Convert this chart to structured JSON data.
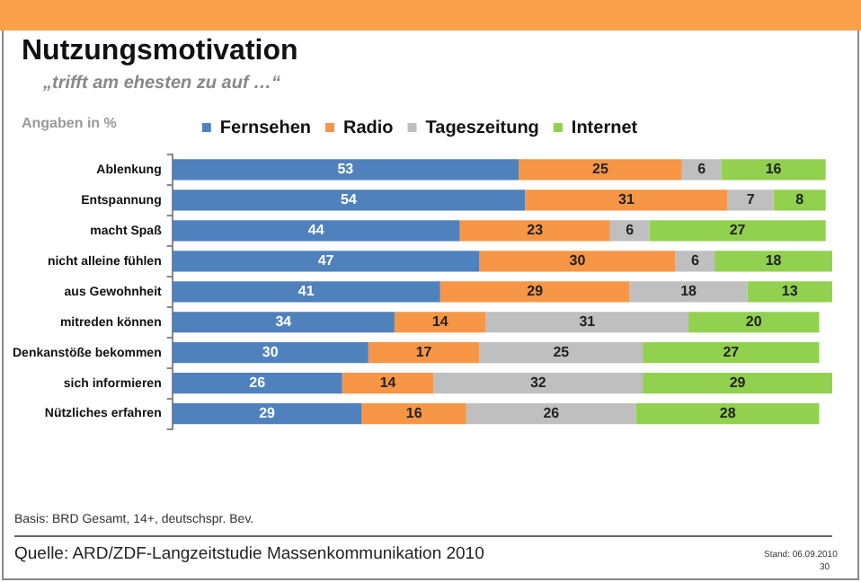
{
  "chart_data": {
    "type": "bar",
    "orientation": "horizontal",
    "stacked": true,
    "title": "Nutzungsmotivation",
    "subtitle": "„trifft am ehesten zu auf …“",
    "categories": [
      "Ablenkung",
      "Entspannung",
      "macht Spaß",
      "nicht alleine fühlen",
      "aus Gewohnheit",
      "mitreden können",
      "Denkanstöße bekommen",
      "sich informieren",
      "Nützliches erfahren"
    ],
    "series": [
      {
        "name": "Fernsehen",
        "color": "#4f81bd",
        "values": [
          53,
          54,
          44,
          47,
          41,
          34,
          30,
          26,
          29
        ]
      },
      {
        "name": "Radio",
        "color": "#f79646",
        "values": [
          25,
          31,
          23,
          30,
          29,
          14,
          17,
          14,
          16
        ]
      },
      {
        "name": "Tageszeitung",
        "color": "#bfbfbf",
        "values": [
          6,
          7,
          6,
          6,
          18,
          31,
          25,
          32,
          26
        ]
      },
      {
        "name": "Internet",
        "color": "#92d050",
        "values": [
          16,
          8,
          27,
          18,
          13,
          20,
          27,
          29,
          28
        ]
      }
    ],
    "xlim": [
      0,
      101
    ],
    "tick_labels": "y",
    "grid": false,
    "legend": "top",
    "data_labels": true,
    "annotations": [
      "Angaben in %",
      "Basis: BRD Gesamt, 14+, deutschspr. Bev.",
      "Quelle: ARD/ZDF-Langzeitstudie Massenkommunikation 2010",
      "Stand: 06.09.2010",
      "30"
    ]
  }
}
